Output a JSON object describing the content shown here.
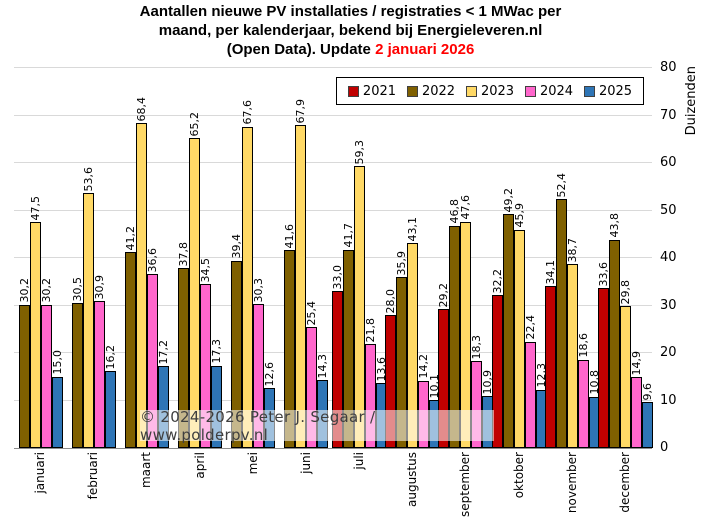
{
  "title": {
    "line1": "Aantallen nieuwe PV installaties  / registraties  < 1 MWac per",
    "line2": "maand, per kalenderjaar, bekend bij Energieleveren.nl",
    "line3_prefix": "(Open Data). Update ",
    "line3_highlight": "2 januari 2026",
    "highlight_color": "#ff0000"
  },
  "watermark": {
    "text": "© 2024-2026 Peter J. Segaar / www.polderpv.nl"
  },
  "y_axis": {
    "label": "Duizenden",
    "min": 0,
    "max": 80,
    "step": 10,
    "ticks": [
      0,
      10,
      20,
      30,
      40,
      50,
      60,
      70,
      80
    ]
  },
  "chart_data": {
    "type": "bar",
    "title": "Aantallen nieuwe PV installaties / registraties < 1 MWac per maand, per kalenderjaar, bekend bij Energieleveren.nl (Open Data). Update 2 januari 2026",
    "xlabel": "",
    "ylabel": "Duizenden",
    "ylim": [
      0,
      80
    ],
    "grid": true,
    "legend_position": "top-right",
    "decimal_separator": ",",
    "categories": [
      "januari",
      "februari",
      "maart",
      "april",
      "mei",
      "juni",
      "juli",
      "augustus",
      "september",
      "oktober",
      "november",
      "december"
    ],
    "series": [
      {
        "name": "2021",
        "color": "#c00000",
        "values": [
          null,
          null,
          null,
          null,
          null,
          null,
          33.0,
          28.0,
          29.2,
          32.2,
          34.1,
          33.6
        ]
      },
      {
        "name": "2022",
        "color": "#7f6000",
        "values": [
          30.2,
          30.5,
          41.2,
          37.8,
          39.4,
          41.6,
          41.7,
          35.9,
          46.8,
          49.2,
          52.4,
          43.8
        ]
      },
      {
        "name": "2023",
        "color": "#ffd966",
        "values": [
          47.5,
          53.6,
          68.4,
          65.2,
          67.6,
          67.9,
          59.3,
          43.1,
          47.6,
          45.9,
          38.7,
          29.8
        ]
      },
      {
        "name": "2024",
        "color": "#ff66cc",
        "values": [
          30.2,
          30.9,
          36.6,
          34.5,
          30.3,
          25.4,
          21.8,
          14.2,
          18.3,
          22.4,
          18.6,
          14.9
        ]
      },
      {
        "name": "2025",
        "color": "#2e75b6",
        "values": [
          15.0,
          16.2,
          17.2,
          17.3,
          12.6,
          14.3,
          13.6,
          10.1,
          10.9,
          12.3,
          10.8,
          9.6
        ]
      }
    ]
  }
}
